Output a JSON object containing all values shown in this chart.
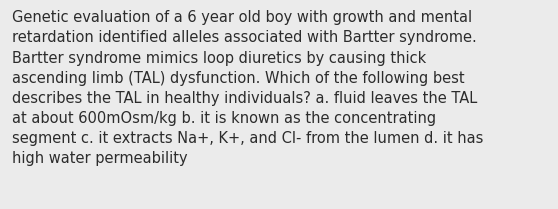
{
  "background_color": "#ebebeb",
  "text_color": "#2c2c2c",
  "lines": [
    "Genetic evaluation of a 6 year old boy with growth and mental",
    "retardation identified alleles associated with Bartter syndrome.",
    "Bartter syndrome mimics loop diuretics by causing thick",
    "ascending limb (TAL) dysfunction. Which of the following best",
    "describes the TAL in healthy individuals? a. fluid leaves the TAL",
    "at about 600mOsm/kg b. it is known as the concentrating",
    "segment c. it extracts Na+, K+, and Cl- from the lumen d. it has",
    "high water permeability"
  ],
  "font_size": 10.5,
  "fig_width": 5.58,
  "fig_height": 2.09,
  "dpi": 100
}
